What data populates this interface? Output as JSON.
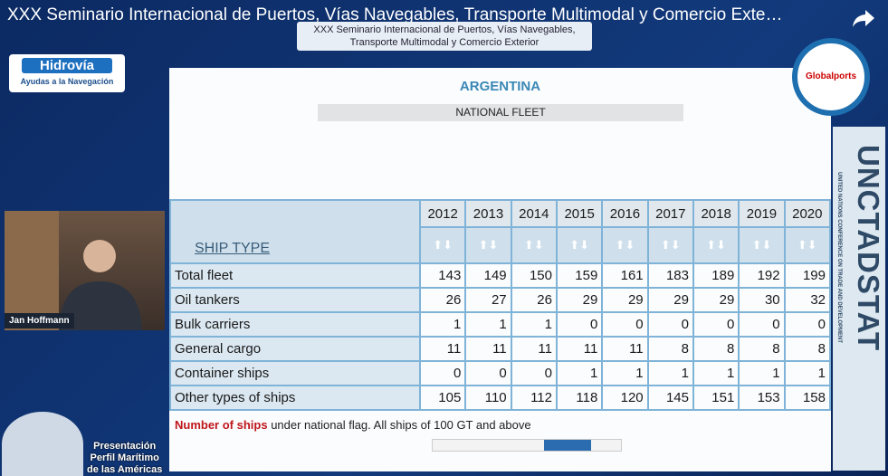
{
  "video_title": "XXX Seminario Internacional de Puertos, Vías Navegables, Transporte Multimodal y Comercio Exte…",
  "banner": [
    "XXX Seminario Internacional de Puertos, Vías Navegables,",
    "Transporte Multimodal y Comercio Exterior"
  ],
  "hidrovia": {
    "name": "Hidrovía",
    "tagline": "Ayudas a la Navegación"
  },
  "globalports": "Globalports",
  "speaker": "Jan Hoffmann",
  "presentation": [
    "Presentación",
    "Perfil Marítimo",
    "de las Américas"
  ],
  "slide": {
    "title": "ARGENTINA",
    "subtitle": "NATIONAL FLEET"
  },
  "table": {
    "corner": "SHIP TYPE",
    "years": [
      2012,
      2013,
      2014,
      2015,
      2016,
      2017,
      2018,
      2019,
      2020
    ],
    "rows": [
      {
        "label": "Total fleet",
        "values": [
          143,
          149,
          150,
          159,
          161,
          183,
          189,
          192,
          199
        ]
      },
      {
        "label": "Oil tankers",
        "values": [
          26,
          27,
          26,
          29,
          29,
          29,
          29,
          30,
          32
        ]
      },
      {
        "label": "Bulk carriers",
        "values": [
          1,
          1,
          1,
          0,
          0,
          0,
          0,
          0,
          0
        ]
      },
      {
        "label": "General cargo",
        "values": [
          11,
          11,
          11,
          11,
          11,
          8,
          8,
          8,
          8
        ]
      },
      {
        "label": "Container ships",
        "values": [
          0,
          0,
          0,
          1,
          1,
          1,
          1,
          1,
          1
        ]
      },
      {
        "label": "Other types of ships",
        "values": [
          105,
          110,
          112,
          118,
          120,
          145,
          151,
          153,
          158
        ]
      }
    ]
  },
  "footnote": {
    "highlight": "Number of ships",
    "rest": " under national flag. All ships of 100 GT and above"
  },
  "unctadstat": {
    "logo": "UNCTADSTAT",
    "org": "UNITED NATIONS CONFERENCE ON TRADE AND DEVELOPMENT"
  }
}
